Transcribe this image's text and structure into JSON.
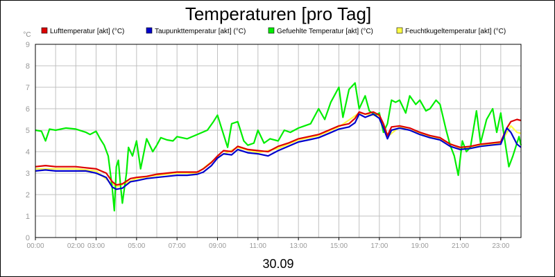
{
  "chart_data": {
    "type": "line",
    "title": "Temperaturen [pro Tag]",
    "ylabel": "°C",
    "xlabel": "30.09",
    "ylim": [
      0,
      9
    ],
    "xlim": [
      0,
      24
    ],
    "grid": true,
    "legend_position": "top",
    "y_ticks": [
      "0",
      "1",
      "2",
      "3",
      "4",
      "5",
      "6",
      "7",
      "8",
      "9"
    ],
    "x_ticks": [
      {
        "t": 0,
        "label": "00:00"
      },
      {
        "t": 2,
        "label": "02:00"
      },
      {
        "t": 3,
        "label": "03:00"
      },
      {
        "t": 5,
        "label": "05:00"
      },
      {
        "t": 7,
        "label": "07:00"
      },
      {
        "t": 9,
        "label": "09:00"
      },
      {
        "t": 11,
        "label": "11:00"
      },
      {
        "t": 13,
        "label": "13:00"
      },
      {
        "t": 15,
        "label": "15:00"
      },
      {
        "t": 17,
        "label": "17:00"
      },
      {
        "t": 19,
        "label": "19:00"
      },
      {
        "t": 21,
        "label": "21:00"
      },
      {
        "t": 23,
        "label": "23:00"
      }
    ],
    "series": [
      {
        "name": "Lufttemperatur [akt] (°C)",
        "color": "#dd0000",
        "points": [
          [
            0,
            3.3
          ],
          [
            0.5,
            3.35
          ],
          [
            1,
            3.3
          ],
          [
            1.5,
            3.3
          ],
          [
            2,
            3.3
          ],
          [
            2.5,
            3.25
          ],
          [
            3,
            3.2
          ],
          [
            3.5,
            3.0
          ],
          [
            3.8,
            2.6
          ],
          [
            4.0,
            2.45
          ],
          [
            4.3,
            2.5
          ],
          [
            4.7,
            2.75
          ],
          [
            5,
            2.8
          ],
          [
            5.5,
            2.85
          ],
          [
            6,
            2.95
          ],
          [
            6.5,
            3.0
          ],
          [
            7,
            3.05
          ],
          [
            7.5,
            3.05
          ],
          [
            8,
            3.05
          ],
          [
            8.3,
            3.2
          ],
          [
            8.7,
            3.5
          ],
          [
            9,
            3.8
          ],
          [
            9.3,
            4.05
          ],
          [
            9.7,
            4.0
          ],
          [
            10,
            4.25
          ],
          [
            10.5,
            4.1
          ],
          [
            11,
            4.05
          ],
          [
            11.5,
            4.0
          ],
          [
            12,
            4.25
          ],
          [
            12.5,
            4.4
          ],
          [
            13,
            4.6
          ],
          [
            13.5,
            4.7
          ],
          [
            14,
            4.8
          ],
          [
            14.5,
            5.0
          ],
          [
            15,
            5.2
          ],
          [
            15.5,
            5.3
          ],
          [
            15.8,
            5.55
          ],
          [
            16,
            5.85
          ],
          [
            16.3,
            5.75
          ],
          [
            16.7,
            5.85
          ],
          [
            17,
            5.7
          ],
          [
            17.2,
            5.3
          ],
          [
            17.4,
            4.75
          ],
          [
            17.6,
            5.15
          ],
          [
            18,
            5.2
          ],
          [
            18.5,
            5.1
          ],
          [
            19,
            4.9
          ],
          [
            19.5,
            4.75
          ],
          [
            20,
            4.65
          ],
          [
            20.5,
            4.35
          ],
          [
            21,
            4.2
          ],
          [
            21.5,
            4.25
          ],
          [
            22,
            4.35
          ],
          [
            22.5,
            4.4
          ],
          [
            23,
            4.45
          ],
          [
            23.3,
            5.1
          ],
          [
            23.5,
            5.4
          ],
          [
            23.8,
            5.5
          ],
          [
            24,
            5.45
          ]
        ]
      },
      {
        "name": "Taupunkttemperatur [akt] (°C)",
        "color": "#0000cc",
        "points": [
          [
            0,
            3.1
          ],
          [
            0.5,
            3.15
          ],
          [
            1,
            3.1
          ],
          [
            1.5,
            3.1
          ],
          [
            2,
            3.1
          ],
          [
            2.5,
            3.1
          ],
          [
            3,
            3.0
          ],
          [
            3.5,
            2.8
          ],
          [
            3.8,
            2.35
          ],
          [
            4.0,
            2.25
          ],
          [
            4.3,
            2.3
          ],
          [
            4.7,
            2.6
          ],
          [
            5,
            2.65
          ],
          [
            5.5,
            2.75
          ],
          [
            6,
            2.8
          ],
          [
            6.5,
            2.85
          ],
          [
            7,
            2.9
          ],
          [
            7.5,
            2.9
          ],
          [
            8,
            2.95
          ],
          [
            8.3,
            3.05
          ],
          [
            8.7,
            3.35
          ],
          [
            9,
            3.7
          ],
          [
            9.3,
            3.9
          ],
          [
            9.7,
            3.85
          ],
          [
            10,
            4.1
          ],
          [
            10.5,
            3.95
          ],
          [
            11,
            3.9
          ],
          [
            11.5,
            3.8
          ],
          [
            12,
            4.05
          ],
          [
            12.5,
            4.25
          ],
          [
            13,
            4.45
          ],
          [
            13.5,
            4.55
          ],
          [
            14,
            4.65
          ],
          [
            14.5,
            4.85
          ],
          [
            15,
            5.05
          ],
          [
            15.5,
            5.15
          ],
          [
            15.8,
            5.35
          ],
          [
            16,
            5.75
          ],
          [
            16.3,
            5.6
          ],
          [
            16.7,
            5.75
          ],
          [
            17,
            5.55
          ],
          [
            17.2,
            5.1
          ],
          [
            17.4,
            4.6
          ],
          [
            17.6,
            5.0
          ],
          [
            18,
            5.1
          ],
          [
            18.5,
            5.0
          ],
          [
            19,
            4.8
          ],
          [
            19.5,
            4.65
          ],
          [
            20,
            4.55
          ],
          [
            20.5,
            4.25
          ],
          [
            21,
            4.1
          ],
          [
            21.5,
            4.15
          ],
          [
            22,
            4.25
          ],
          [
            22.5,
            4.3
          ],
          [
            23,
            4.35
          ],
          [
            23.3,
            5.1
          ],
          [
            23.5,
            4.9
          ],
          [
            23.8,
            4.35
          ],
          [
            24,
            4.2
          ]
        ]
      },
      {
        "name": "Gefuehlte Temperatur [akt] (°C)",
        "color": "#00ee00",
        "points": [
          [
            0,
            5.0
          ],
          [
            0.3,
            4.95
          ],
          [
            0.5,
            4.5
          ],
          [
            0.7,
            5.05
          ],
          [
            1,
            5.0
          ],
          [
            1.5,
            5.1
          ],
          [
            2,
            5.05
          ],
          [
            2.5,
            4.9
          ],
          [
            2.7,
            4.8
          ],
          [
            3,
            4.95
          ],
          [
            3.2,
            4.6
          ],
          [
            3.4,
            4.3
          ],
          [
            3.6,
            3.8
          ],
          [
            3.8,
            2.3
          ],
          [
            3.9,
            1.25
          ],
          [
            4.0,
            3.3
          ],
          [
            4.1,
            3.6
          ],
          [
            4.2,
            2.5
          ],
          [
            4.3,
            1.6
          ],
          [
            4.5,
            3.0
          ],
          [
            4.6,
            4.2
          ],
          [
            4.8,
            3.8
          ],
          [
            5.0,
            4.5
          ],
          [
            5.2,
            3.2
          ],
          [
            5.5,
            4.6
          ],
          [
            5.8,
            4.0
          ],
          [
            6.0,
            4.3
          ],
          [
            6.2,
            4.65
          ],
          [
            6.5,
            4.55
          ],
          [
            6.8,
            4.5
          ],
          [
            7,
            4.7
          ],
          [
            7.5,
            4.6
          ],
          [
            8,
            4.8
          ],
          [
            8.5,
            5.0
          ],
          [
            8.8,
            5.4
          ],
          [
            9,
            5.7
          ],
          [
            9.2,
            5.1
          ],
          [
            9.5,
            4.2
          ],
          [
            9.7,
            5.3
          ],
          [
            10,
            5.4
          ],
          [
            10.3,
            4.5
          ],
          [
            10.5,
            4.3
          ],
          [
            10.8,
            4.4
          ],
          [
            11,
            5.0
          ],
          [
            11.3,
            4.4
          ],
          [
            11.6,
            4.6
          ],
          [
            12,
            4.5
          ],
          [
            12.3,
            5.0
          ],
          [
            12.6,
            4.9
          ],
          [
            13,
            5.1
          ],
          [
            13.3,
            5.2
          ],
          [
            13.6,
            5.3
          ],
          [
            14,
            6.0
          ],
          [
            14.3,
            5.5
          ],
          [
            14.6,
            6.3
          ],
          [
            15,
            7.0
          ],
          [
            15.2,
            5.6
          ],
          [
            15.5,
            6.9
          ],
          [
            15.8,
            7.2
          ],
          [
            16.0,
            6.0
          ],
          [
            16.3,
            6.6
          ],
          [
            16.5,
            5.9
          ],
          [
            16.8,
            5.7
          ],
          [
            17.0,
            5.8
          ],
          [
            17.2,
            4.9
          ],
          [
            17.4,
            5.3
          ],
          [
            17.6,
            6.4
          ],
          [
            17.8,
            6.3
          ],
          [
            18.0,
            6.4
          ],
          [
            18.3,
            5.8
          ],
          [
            18.5,
            6.6
          ],
          [
            18.8,
            6.2
          ],
          [
            19.0,
            6.4
          ],
          [
            19.3,
            5.9
          ],
          [
            19.5,
            6.0
          ],
          [
            19.8,
            6.4
          ],
          [
            20.0,
            6.2
          ],
          [
            20.3,
            5.0
          ],
          [
            20.5,
            4.3
          ],
          [
            20.7,
            3.8
          ],
          [
            20.9,
            2.9
          ],
          [
            21.1,
            4.5
          ],
          [
            21.3,
            4.0
          ],
          [
            21.5,
            4.2
          ],
          [
            21.8,
            5.9
          ],
          [
            22.0,
            4.4
          ],
          [
            22.3,
            5.5
          ],
          [
            22.6,
            6.0
          ],
          [
            22.8,
            4.9
          ],
          [
            23.0,
            5.8
          ],
          [
            23.2,
            4.5
          ],
          [
            23.4,
            3.3
          ],
          [
            23.6,
            3.8
          ],
          [
            23.8,
            4.4
          ],
          [
            23.9,
            4.7
          ],
          [
            24,
            4.3
          ]
        ]
      },
      {
        "name": "Feuchtkugeltemperatur [akt] (°C)",
        "color": "#ffff44",
        "points": [
          [
            0,
            3.2
          ],
          [
            1,
            3.2
          ],
          [
            2,
            3.2
          ],
          [
            3,
            3.1
          ],
          [
            4,
            2.35
          ],
          [
            5,
            2.75
          ],
          [
            6,
            2.9
          ],
          [
            7,
            3.0
          ],
          [
            8,
            3.0
          ],
          [
            9,
            3.75
          ],
          [
            10,
            4.2
          ],
          [
            11,
            3.95
          ],
          [
            12,
            4.15
          ],
          [
            13,
            4.55
          ],
          [
            14,
            4.75
          ],
          [
            15,
            5.15
          ],
          [
            16,
            5.8
          ],
          [
            17,
            5.65
          ],
          [
            17.4,
            4.7
          ],
          [
            18,
            5.15
          ],
          [
            19,
            4.85
          ],
          [
            20,
            4.6
          ],
          [
            21,
            4.15
          ],
          [
            22,
            4.3
          ],
          [
            23,
            4.4
          ],
          [
            23.5,
            5.2
          ],
          [
            23.8,
            4.9
          ],
          [
            24,
            4.85
          ]
        ]
      }
    ]
  }
}
